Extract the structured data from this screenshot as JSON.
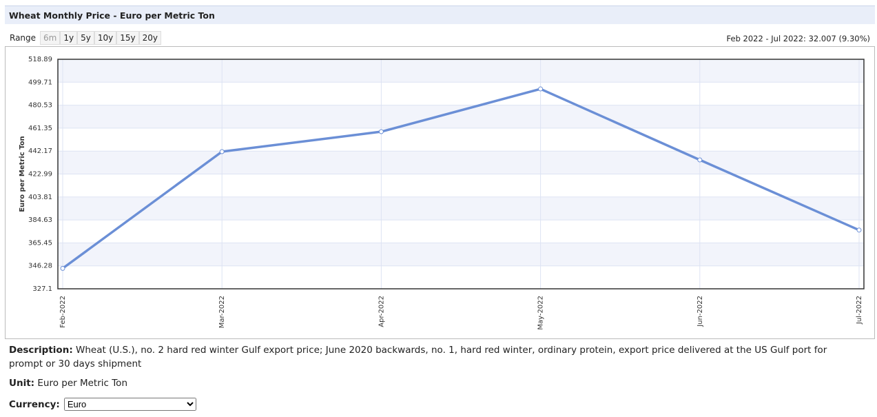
{
  "header": {
    "title": "Wheat Monthly Price - Euro per Metric Ton"
  },
  "range": {
    "label": "Range",
    "buttons": [
      "6m",
      "1y",
      "5y",
      "10y",
      "15y",
      "20y"
    ]
  },
  "change_summary": "Feb 2022 - Jul 2022: 32.007 (9.30%)",
  "chart_data": {
    "type": "line",
    "y_label": "Euro per Metric Ton",
    "categories": [
      "Feb-2022",
      "Mar-2022",
      "Apr-2022",
      "May-2022",
      "Jun-2022",
      "Jul-2022"
    ],
    "series": [
      {
        "name": "Wheat",
        "color": "#6b8fd6",
        "values": [
          344.16,
          441.7,
          458.4,
          494.1,
          434.8,
          376.17
        ]
      }
    ],
    "ylim": [
      327.1,
      518.89
    ],
    "yticks": [
      327.1,
      346.28,
      365.45,
      384.63,
      403.81,
      422.99,
      442.17,
      461.35,
      480.53,
      499.71,
      518.89
    ],
    "grid": true
  },
  "description": {
    "label": "Description:",
    "text": "Wheat (U.S.), no. 2 hard red winter Gulf export price; June 2020 backwards, no. 1, hard red winter, ordinary protein, export price delivered at the US Gulf port for prompt or 30 days shipment"
  },
  "unit": {
    "label": "Unit:",
    "text": "Euro per Metric Ton"
  },
  "currency": {
    "label": "Currency:",
    "selected": "Euro"
  }
}
